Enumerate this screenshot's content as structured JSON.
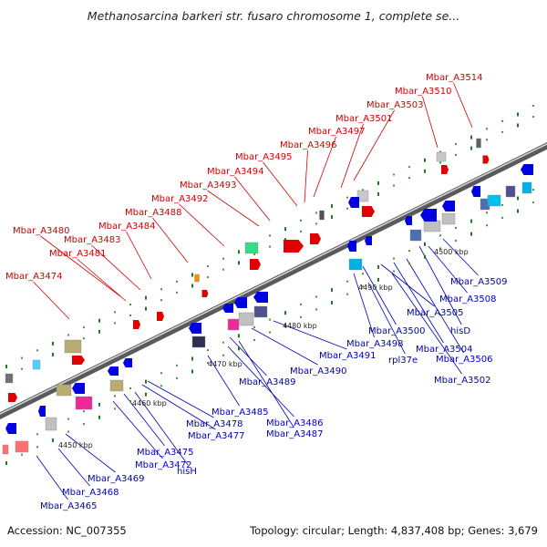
{
  "title": "Methanosarcina barkeri str. fusaro chromosome 1, complete se...",
  "footer": {
    "accession": "Accession: NC_007355",
    "summary": "Topology: circular; Length: 4,837,408 bp; Genes: 3,679"
  },
  "colors": {
    "forward": "#d00000",
    "reverse": "#0000b8"
  },
  "kbp_labels": [
    "4450 kbp",
    "4460 kbp",
    "4470 kbp",
    "4480 kbp",
    "4490 kbp",
    "4500 kbp"
  ],
  "forward_genes": [
    "Mbar_A3474",
    "Mbar_A3480",
    "Mbar_A3481",
    "Mbar_A3483",
    "Mbar_A3484",
    "Mbar_A3488",
    "Mbar_A3492",
    "Mbar_A3493",
    "Mbar_A3494",
    "Mbar_A3495",
    "Mbar_A3496",
    "Mbar_A3497",
    "Mbar_A3501",
    "Mbar_A3503",
    "Mbar_A3510",
    "Mbar_A3514"
  ],
  "reverse_genes": [
    "Mbar_A3465",
    "Mbar_A3468",
    "Mbar_A3469",
    "Mbar_A3472",
    "hisH",
    "Mbar_A3475",
    "Mbar_A3477",
    "Mbar_A3478",
    "Mbar_A3485",
    "Mbar_A3486",
    "Mbar_A3487",
    "Mbar_A3489",
    "Mbar_A3490",
    "Mbar_A3491",
    "Mbar_A3498",
    "rpl37e",
    "Mbar_A3500",
    "Mbar_A3502",
    "Mbar_A3506",
    "Mbar_A3504",
    "hisD",
    "Mbar_A3505",
    "Mbar_A3508",
    "Mbar_A3509"
  ]
}
